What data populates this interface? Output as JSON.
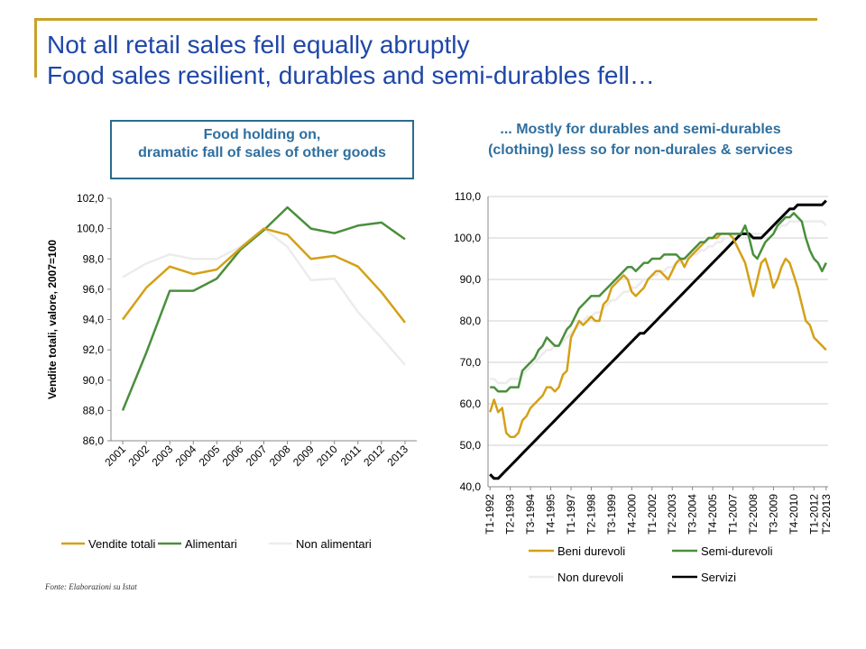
{
  "title": {
    "line1": "Not all retail sales fell equally abruptly",
    "line2": "Food sales resilient, durables and semi-durables fell…"
  },
  "source": "Fonte: Elaborazioni su Istat",
  "colors": {
    "title": "#1f47a8",
    "accent_rule": "#c9a227",
    "heading": "#2f6f9f",
    "box_border": "#2b6c8f"
  },
  "chart_data": [
    {
      "type": "line",
      "title": "Food holding on,\ndramatic fall of sales of other goods",
      "ylabel": "Vendite totali, valore, 2007=100",
      "xlabel": "",
      "categories": [
        "2001",
        "2002",
        "2003",
        "2004",
        "2005",
        "2006",
        "2007",
        "2008",
        "2009",
        "2010",
        "2011",
        "2012",
        "2013"
      ],
      "ylim": [
        86,
        102
      ],
      "yticks": [
        "86,0",
        "88,0",
        "90,0",
        "92,0",
        "94,0",
        "96,0",
        "98,0",
        "100,0",
        "102,0"
      ],
      "grid": false,
      "legend": "bottom",
      "series": [
        {
          "name": "Vendite totali",
          "color": "#d4a017",
          "values": [
            94.0,
            96.1,
            97.5,
            97.0,
            97.3,
            98.7,
            100.0,
            99.6,
            98.0,
            98.2,
            97.5,
            95.8,
            93.8
          ]
        },
        {
          "name": "Alimentari",
          "color": "#4a8f3c",
          "values": [
            88.0,
            91.8,
            95.9,
            95.9,
            96.7,
            98.6,
            99.9,
            101.4,
            100.0,
            99.7,
            100.2,
            100.4,
            99.3
          ]
        },
        {
          "name": "Non alimentari",
          "color": "#ececec",
          "values": [
            96.8,
            97.7,
            98.3,
            98.0,
            98.0,
            98.8,
            100.0,
            98.8,
            96.6,
            96.7,
            94.5,
            92.8,
            91.0
          ]
        }
      ]
    },
    {
      "type": "line",
      "title": "... Mostly for durables and semi-durables (clothing) less so for non-durales & services",
      "xlabel": "",
      "ylabel": "",
      "ylim": [
        40,
        110
      ],
      "yticks": [
        "40,0",
        "50,0",
        "60,0",
        "70,0",
        "80,0",
        "90,0",
        "100,0",
        "110,0"
      ],
      "grid": true,
      "legend": "bottom",
      "x_tick_labels": [
        "T1-1992",
        "T2-1993",
        "T3-1994",
        "T4-1995",
        "T1-1997",
        "T2-1998",
        "T3-1999",
        "T4-2000",
        "T1-2002",
        "T2-2003",
        "T3-2004",
        "T4-2005",
        "T1-2007",
        "T2-2008",
        "T3-2009",
        "T4-2010",
        "T1-2012",
        "T2-2013"
      ],
      "x_tick_every": 5,
      "series": [
        {
          "name": "Beni durevoli",
          "color": "#d4a017",
          "values": [
            58,
            61,
            58,
            59,
            53,
            52,
            52,
            53,
            56,
            57,
            59,
            60,
            61,
            62,
            64,
            64,
            63,
            64,
            67,
            68,
            76,
            78,
            80,
            79,
            80,
            81,
            80,
            80,
            84,
            85,
            88,
            89,
            90,
            91,
            90,
            87,
            86,
            87,
            88,
            90,
            91,
            92,
            92,
            91,
            90,
            92,
            94,
            95,
            93,
            95,
            96,
            97,
            98,
            99,
            100,
            100,
            100,
            101,
            101,
            101,
            100,
            98,
            96,
            94,
            90,
            86,
            90,
            94,
            95,
            92,
            88,
            90,
            93,
            95,
            94,
            91,
            88,
            84,
            80,
            79,
            76,
            75,
            74,
            73
          ]
        },
        {
          "name": "Semi-durevoli",
          "color": "#4a8f3c",
          "values": [
            64,
            64,
            63,
            63,
            63,
            64,
            64,
            64,
            68,
            69,
            70,
            71,
            73,
            74,
            76,
            75,
            74,
            74,
            76,
            78,
            79,
            81,
            83,
            84,
            85,
            86,
            86,
            86,
            87,
            88,
            89,
            90,
            91,
            92,
            93,
            93,
            92,
            93,
            94,
            94,
            95,
            95,
            95,
            96,
            96,
            96,
            96,
            95,
            95,
            96,
            97,
            98,
            99,
            99,
            100,
            100,
            101,
            101,
            101,
            101,
            101,
            101,
            101,
            103,
            100,
            96,
            95,
            97,
            99,
            100,
            101,
            103,
            104,
            105,
            105,
            106,
            105,
            104,
            100,
            97,
            95,
            94,
            92,
            94
          ]
        },
        {
          "name": "Non durevoli",
          "color": "#ececec",
          "values": [
            66,
            66,
            65,
            65,
            65,
            66,
            66,
            66,
            67,
            68,
            69,
            70,
            71,
            72,
            73,
            73,
            74,
            74,
            75,
            76,
            77,
            78,
            79,
            80,
            81,
            81,
            82,
            82,
            83,
            84,
            85,
            85,
            86,
            87,
            87,
            88,
            88,
            89,
            90,
            90,
            91,
            91,
            92,
            92,
            93,
            93,
            94,
            94,
            95,
            95,
            96,
            96,
            97,
            97,
            98,
            98,
            99,
            99,
            100,
            100,
            100,
            101,
            101,
            101,
            101,
            101,
            101,
            101,
            101,
            102,
            102,
            102,
            103,
            103,
            104,
            104,
            104,
            104,
            104,
            104,
            104,
            104,
            104,
            103
          ]
        },
        {
          "name": "Servizi",
          "color": "#000000",
          "values": [
            43,
            42,
            42,
            43,
            44,
            45,
            46,
            47,
            48,
            49,
            50,
            51,
            52,
            53,
            54,
            55,
            56,
            57,
            58,
            59,
            60,
            61,
            62,
            63,
            64,
            65,
            66,
            67,
            68,
            69,
            70,
            71,
            72,
            73,
            74,
            75,
            76,
            77,
            77,
            78,
            79,
            80,
            81,
            82,
            83,
            84,
            85,
            86,
            87,
            88,
            89,
            90,
            91,
            92,
            93,
            94,
            95,
            96,
            97,
            98,
            99,
            100,
            101,
            101,
            101,
            100,
            100,
            100,
            101,
            102,
            103,
            104,
            105,
            106,
            107,
            107,
            108,
            108,
            108,
            108,
            108,
            108,
            108,
            109
          ]
        }
      ]
    }
  ]
}
